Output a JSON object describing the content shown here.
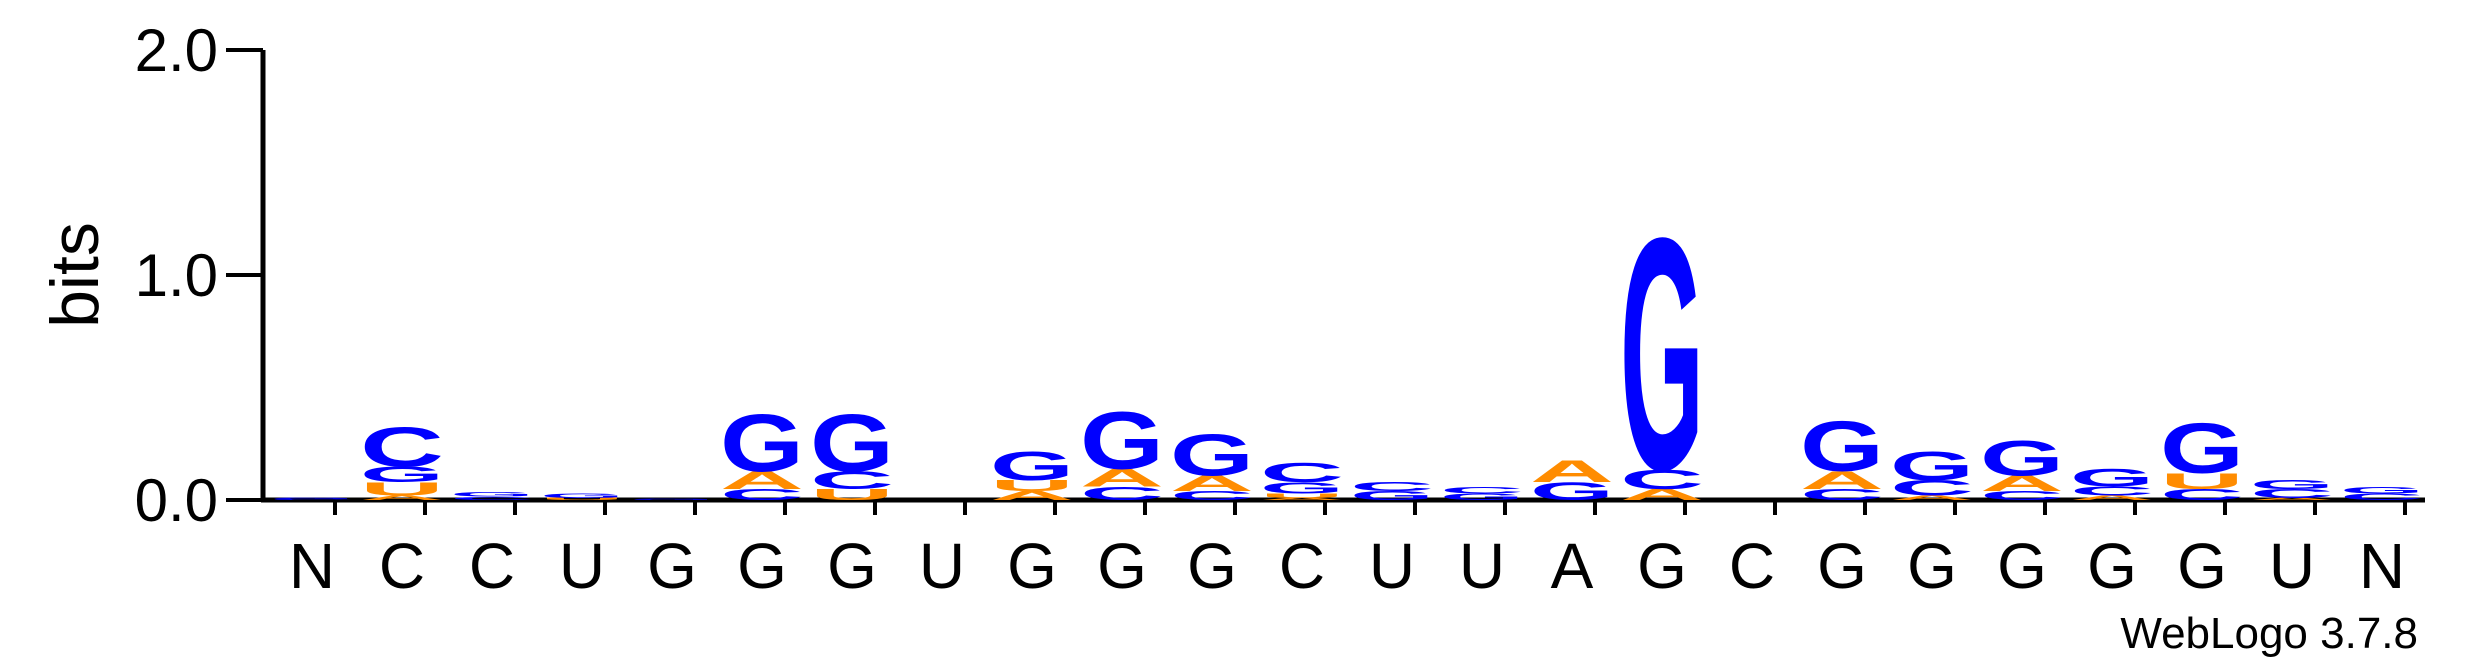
{
  "credit": "WebLogo 3.7.8",
  "colors": {
    "A": "#ff8c00",
    "U": "#ff8c00",
    "G": "#0000ff",
    "C": "#0000ff"
  },
  "chart_data": {
    "type": "sequence-logo",
    "ylabel": "bits",
    "ylim": [
      0,
      2.0
    ],
    "yticks": [
      "0.0",
      "1.0",
      "2.0"
    ],
    "positions": [
      {
        "label": "N",
        "stack": [
          {
            "letter": "C",
            "bits": 0.005
          },
          {
            "letter": "G",
            "bits": 0.005
          }
        ]
      },
      {
        "label": "C",
        "stack": [
          {
            "letter": "A",
            "bits": 0.02
          },
          {
            "letter": "U",
            "bits": 0.06
          },
          {
            "letter": "G",
            "bits": 0.07
          },
          {
            "letter": "C",
            "bits": 0.18
          }
        ]
      },
      {
        "label": "C",
        "stack": [
          {
            "letter": "C",
            "bits": 0.015
          },
          {
            "letter": "G",
            "bits": 0.02
          }
        ]
      },
      {
        "label": "U",
        "stack": [
          {
            "letter": "U",
            "bits": 0.01
          },
          {
            "letter": "G",
            "bits": 0.02
          }
        ]
      },
      {
        "label": "G",
        "stack": [
          {
            "letter": "G",
            "bits": 0.005
          }
        ]
      },
      {
        "label": "G",
        "stack": [
          {
            "letter": "C",
            "bits": 0.05
          },
          {
            "letter": "A",
            "bits": 0.08
          },
          {
            "letter": "G",
            "bits": 0.26
          }
        ]
      },
      {
        "label": "G",
        "stack": [
          {
            "letter": "U",
            "bits": 0.05
          },
          {
            "letter": "C",
            "bits": 0.08
          },
          {
            "letter": "G",
            "bits": 0.26
          }
        ]
      },
      {
        "label": "U",
        "stack": []
      },
      {
        "label": "G",
        "stack": [
          {
            "letter": "A",
            "bits": 0.04
          },
          {
            "letter": "U",
            "bits": 0.05
          },
          {
            "letter": "G",
            "bits": 0.13
          }
        ]
      },
      {
        "label": "G",
        "stack": [
          {
            "letter": "C",
            "bits": 0.06
          },
          {
            "letter": "A",
            "bits": 0.08
          },
          {
            "letter": "G",
            "bits": 0.26
          }
        ]
      },
      {
        "label": "G",
        "stack": [
          {
            "letter": "C",
            "bits": 0.04
          },
          {
            "letter": "A",
            "bits": 0.07
          },
          {
            "letter": "G",
            "bits": 0.19
          }
        ]
      },
      {
        "label": "C",
        "stack": [
          {
            "letter": "A",
            "bits": 0.01
          },
          {
            "letter": "U",
            "bits": 0.02
          },
          {
            "letter": "G",
            "bits": 0.05
          },
          {
            "letter": "C",
            "bits": 0.09
          }
        ]
      },
      {
        "label": "U",
        "stack": [
          {
            "letter": "G",
            "bits": 0.04
          },
          {
            "letter": "C",
            "bits": 0.04
          }
        ]
      },
      {
        "label": "U",
        "stack": [
          {
            "letter": "G",
            "bits": 0.03
          },
          {
            "letter": "C",
            "bits": 0.03
          }
        ]
      },
      {
        "label": "A",
        "stack": [
          {
            "letter": "G",
            "bits": 0.08
          },
          {
            "letter": "A",
            "bits": 0.1
          }
        ]
      },
      {
        "label": "G",
        "stack": [
          {
            "letter": "A",
            "bits": 0.05
          },
          {
            "letter": "C",
            "bits": 0.09
          },
          {
            "letter": "G",
            "bits": 1.06
          }
        ]
      },
      {
        "label": "C",
        "stack": []
      },
      {
        "label": "G",
        "stack": [
          {
            "letter": "C",
            "bits": 0.05
          },
          {
            "letter": "A",
            "bits": 0.08
          },
          {
            "letter": "G",
            "bits": 0.23
          }
        ]
      },
      {
        "label": "G",
        "stack": [
          {
            "letter": "A",
            "bits": 0.02
          },
          {
            "letter": "C",
            "bits": 0.07
          },
          {
            "letter": "G",
            "bits": 0.13
          }
        ]
      },
      {
        "label": "G",
        "stack": [
          {
            "letter": "C",
            "bits": 0.04
          },
          {
            "letter": "A",
            "bits": 0.07
          },
          {
            "letter": "G",
            "bits": 0.16
          }
        ]
      },
      {
        "label": "G",
        "stack": [
          {
            "letter": "A",
            "bits": 0.02
          },
          {
            "letter": "C",
            "bits": 0.04
          },
          {
            "letter": "G",
            "bits": 0.08
          }
        ]
      },
      {
        "label": "G",
        "stack": [
          {
            "letter": "C",
            "bits": 0.05
          },
          {
            "letter": "U",
            "bits": 0.07
          },
          {
            "letter": "G",
            "bits": 0.23
          }
        ]
      },
      {
        "label": "U",
        "stack": [
          {
            "letter": "A",
            "bits": 0.01
          },
          {
            "letter": "C",
            "bits": 0.04
          },
          {
            "letter": "G",
            "bits": 0.04
          }
        ]
      },
      {
        "label": "N",
        "stack": [
          {
            "letter": "C",
            "bits": 0.03
          },
          {
            "letter": "G",
            "bits": 0.03
          }
        ]
      }
    ]
  }
}
